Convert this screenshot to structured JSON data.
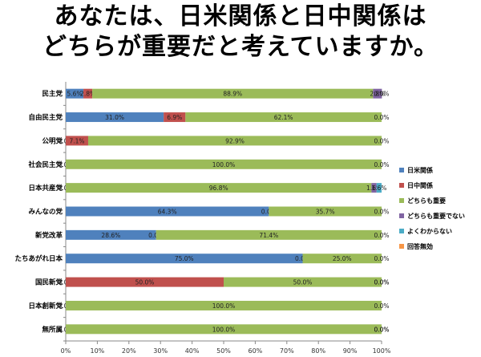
{
  "title": {
    "line1": "あなたは、日米関係と日中関係は",
    "line2": "どちらが重要だと考えていますか。"
  },
  "colors": {
    "日米関係": "#4F81BD",
    "日中関係": "#C0504D",
    "どちらも重要": "#9BBB59",
    "どちらも重要でない": "#8064A2",
    "よくわからない": "#4BACC6",
    "回答無効": "#F79646"
  },
  "chart_data": {
    "type": "bar",
    "orientation": "horizontal",
    "stacked": "percent",
    "categories": [
      "民主党",
      "自由民主党",
      "公明党",
      "社会民主党",
      "日本共産党",
      "みんなの党",
      "新党改革",
      "たちあがれ日本",
      "国民新党",
      "日本創新党",
      "無所属"
    ],
    "series": [
      {
        "name": "日米関係",
        "values": [
          5.6,
          31.0,
          0.0,
          0.0,
          0.0,
          64.3,
          28.6,
          75.0,
          0.0,
          0.0,
          0.0
        ],
        "labels": [
          "5.6%",
          "31.0%",
          "0.0%",
          "0.0%",
          "0.0%",
          "64.3%",
          "28.6%",
          "75.0%",
          "0.0%",
          "0.0%",
          "0.0%"
        ]
      },
      {
        "name": "日中関係",
        "values": [
          2.8,
          6.9,
          7.1,
          0.0,
          0.0,
          0.0,
          0.0,
          0.0,
          50.0,
          0.0,
          0.0
        ],
        "labels": [
          "2.8%",
          "6.9%",
          "7.1%",
          "",
          "",
          "0.0%",
          "0.0%",
          "0.0%",
          "50.0%",
          "",
          ""
        ]
      },
      {
        "name": "どちらも重要",
        "values": [
          88.9,
          62.1,
          92.9,
          100.0,
          96.8,
          35.7,
          71.4,
          25.0,
          50.0,
          100.0,
          100.0
        ],
        "labels": [
          "88.9%",
          "62.1%",
          "92.9%",
          "100.0%",
          "96.8%",
          "35.7%",
          "71.4%",
          "25.0%",
          "50.0%",
          "100.0%",
          "100.0%"
        ]
      },
      {
        "name": "どちらも重要でない",
        "values": [
          2.8,
          0.0,
          0.0,
          0.0,
          1.6,
          0.0,
          0.0,
          0.0,
          0.0,
          0.0,
          0.0
        ],
        "labels": [
          "2.8%",
          "0.0%",
          "0.0%",
          "0.0%",
          "1.6%",
          "0.0%",
          "0.0%",
          "0.0%",
          "0.0%",
          "0.0%",
          "0.0%"
        ]
      },
      {
        "name": "よくわからない",
        "values": [
          0.0,
          0.0,
          0.0,
          0.0,
          1.6,
          0.0,
          0.0,
          0.0,
          0.0,
          0.0,
          0.0
        ],
        "labels": [
          "",
          "",
          "",
          "",
          "1.6%",
          "",
          "",
          "",
          "",
          "",
          ""
        ]
      },
      {
        "name": "回答無効",
        "values": [
          0.0,
          0.0,
          0.0,
          0.0,
          0.0,
          0.0,
          0.0,
          0.0,
          0.0,
          0.0,
          0.0
        ],
        "labels": [
          "0.0%",
          "",
          "",
          "",
          "",
          "",
          "",
          "",
          "0.0%",
          "",
          "0.0%"
        ]
      }
    ],
    "xlim": [
      0,
      100
    ],
    "xticks": [
      "0%",
      "10%",
      "20%",
      "30%",
      "40%",
      "50%",
      "60%",
      "70%",
      "80%",
      "90%",
      "100%"
    ],
    "legend": "right",
    "grid": false
  }
}
